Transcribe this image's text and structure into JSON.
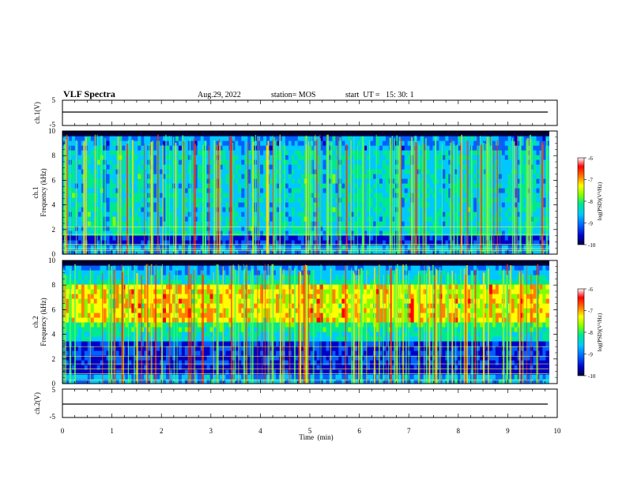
{
  "header": {
    "title": "VLF Spectra",
    "date": "Aug.29, 2022",
    "station": "station= MOS",
    "start_ut": "start  UT =   15: 30: 1"
  },
  "chart_data": {
    "type": "heatmap",
    "x_axis": {
      "label": "Time  (min)",
      "range": [
        0,
        10
      ],
      "ticks": [
        "0",
        "1",
        "2",
        "3",
        "4",
        "5",
        "6",
        "7",
        "8",
        "9",
        "10"
      ],
      "data_end_min": 9.83
    },
    "panels": [
      {
        "id": "ch1-waveform",
        "type": "line",
        "ylabel": "ch.1(V)",
        "ylim": [
          -5,
          5
        ],
        "yticks": [
          "5",
          "-5"
        ],
        "trace_level_v": 0
      },
      {
        "id": "ch1-spectrogram",
        "type": "heatmap",
        "ylabel_channel": "ch.1",
        "ylabel": "Frequency (kHz)",
        "ylim": [
          0,
          10
        ],
        "yticks": [
          "0",
          "2",
          "4",
          "6",
          "8",
          "10"
        ],
        "background_band_khz": [
          1.5,
          9.8
        ],
        "horizontal_lines_khz": [
          0.3,
          0.45,
          0.8,
          1.6,
          2.2
        ],
        "colorbar": {
          "label": "log(PSD)(V²/Hz)",
          "range": [
            -10,
            -6
          ],
          "ticks": [
            "-6",
            "-7",
            "-8",
            "-9",
            "-10"
          ]
        }
      },
      {
        "id": "ch2-spectrogram",
        "type": "heatmap",
        "ylabel_channel": "ch.2",
        "ylabel": "Frequency (kHz)",
        "ylim": [
          0,
          10
        ],
        "yticks": [
          "0",
          "2",
          "4",
          "6",
          "8",
          "10"
        ],
        "strong_band_khz": [
          5,
          8
        ],
        "horizontal_lines_khz": [
          0.3,
          0.8,
          1.2,
          1.6,
          2.2,
          3.0
        ],
        "colorbar": {
          "label": "log(PSD)(V²/Hz)",
          "range": [
            -10,
            -6
          ],
          "ticks": [
            "-6",
            "-7",
            "-8",
            "-9",
            "-10"
          ]
        }
      },
      {
        "id": "ch2-waveform",
        "type": "line",
        "ylabel": "ch.2(V)",
        "ylim": [
          -5,
          5
        ],
        "yticks": [
          "5",
          "-5"
        ],
        "trace_level_v": 0
      }
    ],
    "colormap": [
      "#000040",
      "#0000c8",
      "#0060ff",
      "#00c8ff",
      "#00e890",
      "#80ff00",
      "#ffff00",
      "#ff8000",
      "#ff0000",
      "#ffffff"
    ]
  }
}
